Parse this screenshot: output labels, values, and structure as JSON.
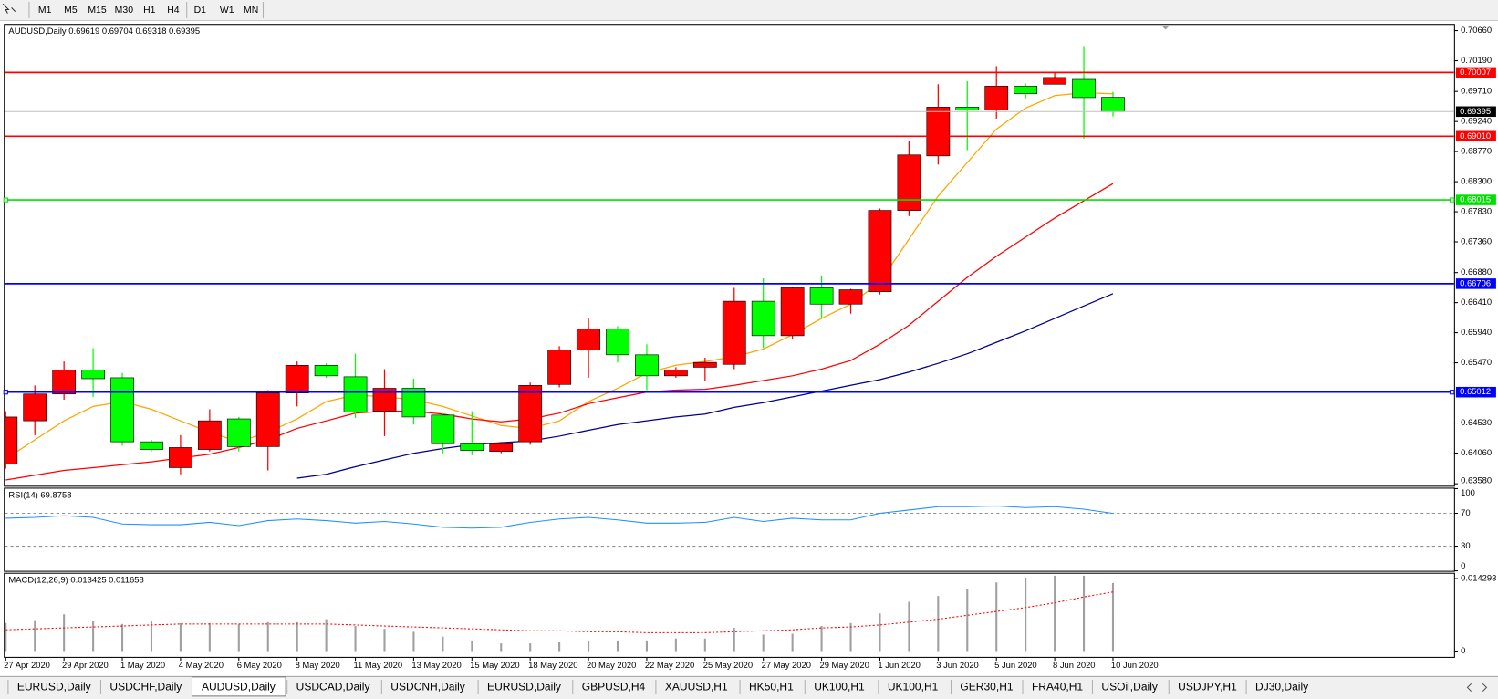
{
  "toolbar": {
    "timeframes": [
      "M1",
      "M5",
      "M15",
      "M30",
      "H1",
      "H4",
      "D1",
      "W1",
      "MN"
    ]
  },
  "chart_data": [
    {
      "type": "candlestick",
      "title": "AUDUSD,Daily  0.69619 0.69704 0.69318 0.69395",
      "categories": [
        "27 Apr 2020",
        null,
        "29 Apr 2020",
        null,
        "1 May 2020",
        null,
        "4 May 2020",
        null,
        "6 May 2020",
        null,
        "8 May 2020",
        null,
        "11 May 2020",
        null,
        "13 May 2020",
        null,
        "15 May 2020",
        null,
        "18 May 2020",
        null,
        "20 May 2020",
        null,
        "22 May 2020",
        null,
        "25 May 2020",
        null,
        "27 May 2020",
        null,
        "29 May 2020",
        null,
        "1 Jun 2020",
        null,
        "3 Jun 2020",
        null,
        "5 Jun 2020",
        null,
        "8 Jun 2020",
        null,
        "10 Jun 2020"
      ],
      "open": [
        0.63892,
        0.64564,
        0.64983,
        0.65356,
        0.65237,
        0.64236,
        0.63832,
        0.64116,
        0.64594,
        0.64161,
        0.64998,
        0.65431,
        0.65252,
        0.64714,
        0.65072,
        0.64654,
        0.64206,
        0.64086,
        0.64236,
        0.65132,
        0.6567,
        0.65999,
        0.65595,
        0.65267,
        0.65401,
        0.65446,
        0.66432,
        0.65894,
        0.66641,
        0.66387,
        0.66581,
        0.67851,
        0.68703,
        0.69465,
        0.6942,
        0.69793,
        0.69823,
        0.69898,
        0.69619
      ],
      "high": [
        0.64714,
        0.65117,
        0.65491,
        0.657,
        0.65311,
        0.64266,
        0.6434,
        0.64744,
        0.64624,
        0.65043,
        0.65491,
        0.65461,
        0.6561,
        0.65371,
        0.65222,
        0.64684,
        0.64714,
        0.64236,
        0.65162,
        0.6573,
        0.66163,
        0.66044,
        0.6576,
        0.65401,
        0.6555,
        0.66641,
        0.6679,
        0.66656,
        0.66835,
        0.66626,
        0.67881,
        0.68942,
        0.69823,
        0.69868,
        0.70107,
        0.69838,
        0.70018,
        0.70421,
        0.69704
      ],
      "low": [
        0.63817,
        0.6434,
        0.64893,
        0.64938,
        0.64176,
        0.64086,
        0.63728,
        0.64086,
        0.64086,
        0.63788,
        0.64789,
        0.65237,
        0.64609,
        0.64325,
        0.64505,
        0.64057,
        0.64027,
        0.64057,
        0.64191,
        0.65087,
        0.65237,
        0.65476,
        0.65043,
        0.65237,
        0.65192,
        0.65371,
        0.657,
        0.65834,
        0.66163,
        0.66238,
        0.66537,
        0.67762,
        0.68568,
        0.68793,
        0.69285,
        0.69584,
        0.69823,
        0.68972,
        0.69318
      ],
      "close": [
        0.64624,
        0.64983,
        0.65356,
        0.65222,
        0.64236,
        0.64116,
        0.64146,
        0.64564,
        0.64161,
        0.64998,
        0.65431,
        0.65267,
        0.64699,
        0.65072,
        0.64624,
        0.64206,
        0.64101,
        0.64206,
        0.65117,
        0.6567,
        0.65999,
        0.65595,
        0.65267,
        0.65356,
        0.65476,
        0.66432,
        0.65894,
        0.66641,
        0.66387,
        0.66611,
        0.67851,
        0.68718,
        0.69465,
        0.6942,
        0.69793,
        0.69674,
        0.69928,
        0.69614,
        0.69395
      ],
      "up_color": "#ff0000",
      "down_color": "#00ff00",
      "overlays": [
        {
          "color": "#ffa500",
          "values": [
            0.63967,
            0.64266,
            0.64564,
            0.64789,
            0.64863,
            0.64744,
            0.64564,
            0.64385,
            0.64236,
            0.64385,
            0.64594,
            0.64863,
            0.64968,
            0.64938,
            0.64893,
            0.64789,
            0.64639,
            0.6449,
            0.64445,
            0.64564,
            0.64863,
            0.65072,
            0.65311,
            0.65431,
            0.65491,
            0.65565,
            0.65685,
            0.65909,
            0.66163,
            0.66387,
            0.66731,
            0.67403,
            0.68075,
            0.68598,
            0.69121,
            0.6945,
            0.69644,
            0.69689,
            0.69674
          ]
        },
        {
          "color": "#ff0000",
          "values": [
            0.63638,
            0.63713,
            0.63788,
            0.63832,
            0.63877,
            0.63922,
            0.63982,
            0.64042,
            0.64146,
            0.64266,
            0.64445,
            0.64564,
            0.64684,
            0.64714,
            0.64714,
            0.64669,
            0.64594,
            0.64549,
            0.64594,
            0.64684,
            0.64833,
            0.64923,
            0.65013,
            0.65043,
            0.65057,
            0.65117,
            0.65192,
            0.65267,
            0.65371,
            0.65506,
            0.6576,
            0.66058,
            0.66432,
            0.66805,
            0.67134,
            0.67433,
            0.67732,
            0.68001,
            0.6827
          ]
        },
        {
          "color": "#00008b",
          "values": [
            null,
            null,
            null,
            null,
            null,
            null,
            null,
            null,
            null,
            null,
            0.63668,
            0.63728,
            0.63847,
            0.63952,
            0.64057,
            0.64131,
            0.64191,
            0.64221,
            0.64251,
            0.64325,
            0.64415,
            0.64505,
            0.64564,
            0.64624,
            0.64669,
            0.64774,
            0.64848,
            0.64938,
            0.65028,
            0.65117,
            0.65207,
            0.65326,
            0.65461,
            0.6561,
            0.6579,
            0.65969,
            0.66163,
            0.66357,
            0.66551
          ]
        }
      ],
      "levels": [
        {
          "value": 0.70007,
          "color": "#ff0000"
        },
        {
          "value": 0.6901,
          "label": "0.69010",
          "color": "#ff0000"
        },
        {
          "value": 0.68015,
          "color": "#00e000"
        },
        {
          "value": 0.66706,
          "color": "#0000ff"
        },
        {
          "value": 0.65012,
          "color": "#0000ff"
        }
      ],
      "last_price": 0.69395,
      "ylim": [
        0.63549,
        0.7075
      ],
      "yticks": [
        {
          "value": 0.7066,
          "label": "0.70660"
        },
        {
          "value": 0.7019,
          "label": "0.70190"
        },
        {
          "value": 0.6971,
          "label": "0.69710"
        },
        {
          "value": 0.6924,
          "label": "0.69240"
        },
        {
          "value": 0.6877,
          "label": "0.68770"
        },
        {
          "value": 0.683,
          "label": "0.68300"
        },
        {
          "value": 0.6783,
          "label": "0.67830"
        },
        {
          "value": 0.6736,
          "label": "0.67360"
        },
        {
          "value": 0.6688,
          "label": "0.66880"
        },
        {
          "value": 0.6641,
          "label": "0.66410"
        },
        {
          "value": 0.6594,
          "label": "0.65940"
        },
        {
          "value": 0.6547,
          "label": "0.65470"
        },
        {
          "value": 0.6453,
          "label": "0.64530"
        },
        {
          "value": 0.6406,
          "label": "0.64060"
        },
        {
          "value": 0.6358,
          "label": "0.63580"
        }
      ]
    },
    {
      "type": "line",
      "title": "RSI(14) 69.8758",
      "color": "#1e90ff",
      "values": [
        64,
        65,
        67,
        65,
        57,
        56,
        56,
        59,
        55,
        61,
        63,
        61,
        58,
        60,
        57,
        53,
        52,
        53,
        59,
        63,
        65,
        62,
        58,
        58,
        59,
        65,
        60,
        64,
        62,
        62,
        70,
        74,
        78,
        78,
        79,
        77,
        78,
        75,
        69.8758
      ],
      "levels": [
        70,
        30
      ],
      "ylim": [
        0,
        100
      ],
      "yticks": [
        100,
        70,
        30,
        0
      ]
    },
    {
      "type": "macd",
      "title": "MACD(12,26,9) 0.013425 0.011658",
      "histogram_color": "#a0a0a0",
      "signal_color": "#ff0000",
      "values": [
        0.00553,
        0.0061,
        0.00724,
        0.00591,
        0.00534,
        0.00591,
        0.00553,
        0.00553,
        0.00534,
        0.00572,
        0.00572,
        0.00629,
        0.00495,
        0.00438,
        0.00381,
        0.00286,
        0.0021,
        0.00152,
        0.00152,
        0.00172,
        0.0021,
        0.0021,
        0.0021,
        0.00248,
        0.00248,
        0.00457,
        0.00324,
        0.00343,
        0.00495,
        0.00553,
        0.00743,
        0.00972,
        0.01086,
        0.0122,
        0.01353,
        0.01448,
        0.01486,
        0.01486,
        0.013425
      ],
      "signal": [
        0.00419,
        0.00438,
        0.00457,
        0.00476,
        0.00495,
        0.00515,
        0.00534,
        0.00534,
        0.00534,
        0.00534,
        0.00534,
        0.00534,
        0.00515,
        0.00495,
        0.00476,
        0.00457,
        0.00438,
        0.00419,
        0.004,
        0.004,
        0.00381,
        0.00381,
        0.00362,
        0.00362,
        0.00362,
        0.00381,
        0.004,
        0.00419,
        0.00457,
        0.00476,
        0.00515,
        0.00572,
        0.00629,
        0.00705,
        0.00781,
        0.00858,
        0.00953,
        0.01067,
        0.011658
      ],
      "ylim": [
        -0.00114,
        0.01525
      ],
      "yticks": [
        0.014293,
        0
      ]
    }
  ],
  "tabs": [
    "EURUSD,Daily",
    "USDCHF,Daily",
    "AUDUSD,Daily",
    "USDCAD,Daily",
    "USDCNH,Daily",
    "EURUSD,Daily",
    "GBPUSD,H4",
    "XAUUSD,H1",
    "HK50,H1",
    "UK100,H1",
    "UK100,H1",
    "GER30,H1",
    "FRA40,H1",
    "USOil,Daily",
    "USDJPY,H1",
    "DJ30,Daily"
  ],
  "active_tab": 2
}
